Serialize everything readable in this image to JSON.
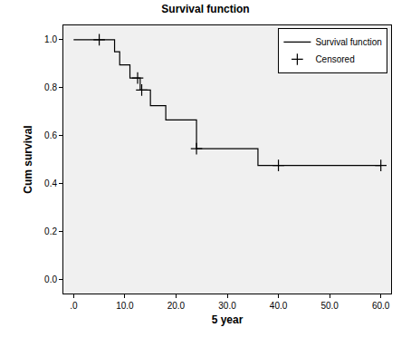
{
  "chart_data": {
    "type": "step",
    "title": "Survival function",
    "x_label": "5 year",
    "y_label": "Cum survival",
    "series": [
      {
        "name": "Survival function",
        "type": "line",
        "color": "#000000",
        "line_style": "solid",
        "x": [
          0,
          8,
          9,
          11,
          13,
          15,
          18,
          24,
          36,
          60
        ],
        "values": [
          1.0,
          0.95,
          0.895,
          0.84,
          0.79,
          0.725,
          0.665,
          0.545,
          0.475,
          0.475
        ]
      },
      {
        "name": "Censored",
        "type": "scatter",
        "color": "#000000",
        "marker": "cross",
        "x": [
          5,
          12.5,
          13.3,
          24,
          40,
          60
        ],
        "values": [
          1.0,
          0.84,
          0.79,
          0.545,
          0.475,
          0.475
        ]
      }
    ],
    "xlim": [
      -2,
      62
    ],
    "ylim": [
      -0.06,
      1.06
    ],
    "xticks": [
      {
        "value": 0,
        "label": ".0"
      },
      {
        "value": 10,
        "label": "10.0"
      },
      {
        "value": 20,
        "label": "20.0"
      },
      {
        "value": 30,
        "label": "30.0"
      },
      {
        "value": 40,
        "label": "40.0"
      },
      {
        "value": 50,
        "label": "50.0"
      },
      {
        "value": 60,
        "label": "60.0"
      }
    ],
    "yticks": [
      {
        "value": 0,
        "label": "0.0"
      },
      {
        "value": 0.2,
        "label": "0.2"
      },
      {
        "value": 0.4,
        "label": "0.4"
      },
      {
        "value": 0.6,
        "label": "0.6"
      },
      {
        "value": 0.8,
        "label": "0.8"
      },
      {
        "value": 1.0,
        "label": "1.0"
      }
    ],
    "grid": false,
    "legend": "upper right"
  }
}
